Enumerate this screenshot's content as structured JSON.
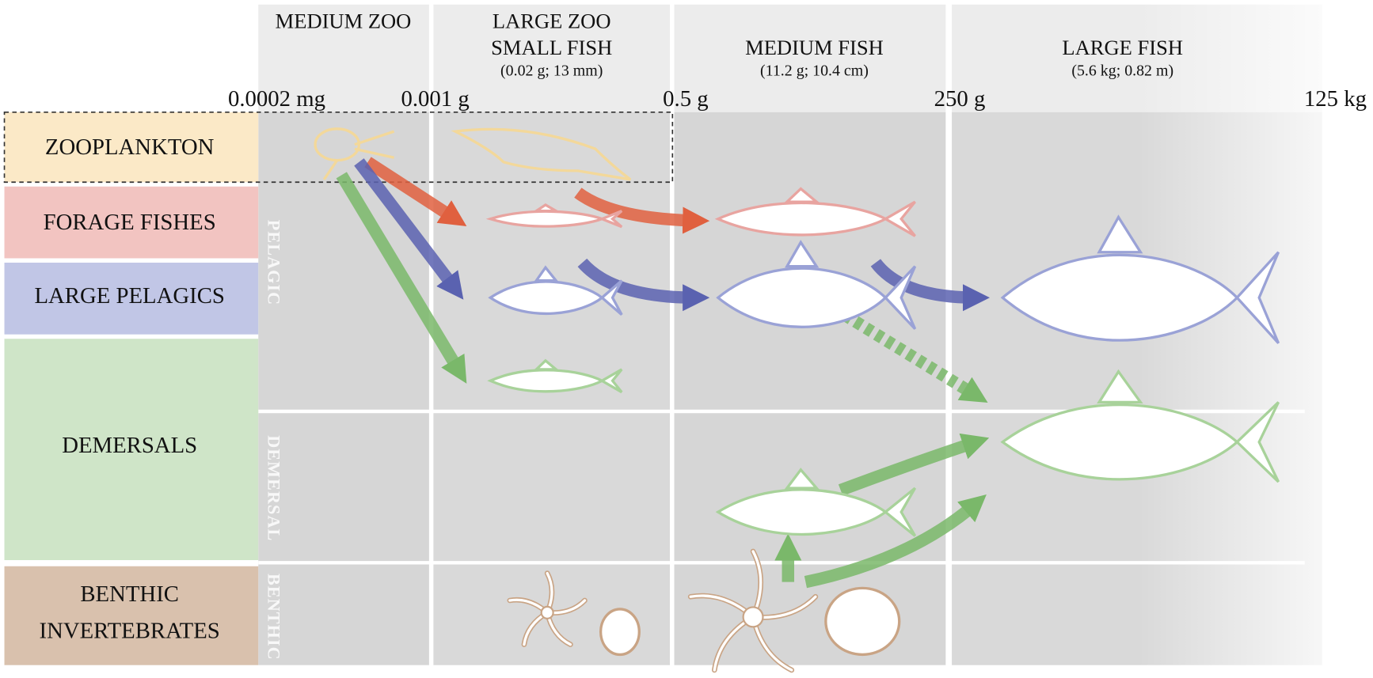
{
  "columns": [
    {
      "lines": [
        "MEDIUM ZOO"
      ]
    },
    {
      "lines": [
        "LARGE ZOO",
        "SMALL FISH"
      ],
      "note": "(0.02 g; 13 mm)"
    },
    {
      "lines": [
        "MEDIUM FISH"
      ],
      "note": "(11.2 g; 10.4 cm)"
    },
    {
      "lines": [
        "LARGE FISH"
      ],
      "note": "(5.6 kg; 0.82 m)"
    }
  ],
  "size_labels": [
    "0.0002 mg",
    "0.001 g",
    "0.5 g",
    "250 g",
    "125 kg"
  ],
  "groups": [
    {
      "lines": [
        "ZOOPLANKTON"
      ]
    },
    {
      "lines": [
        "FORAGE FISHES"
      ]
    },
    {
      "lines": [
        "LARGE PELAGICS"
      ]
    },
    {
      "lines": [
        "DEMERSALS"
      ]
    },
    {
      "lines": [
        "BENTHIC",
        "INVERTEBRATES"
      ]
    }
  ],
  "habitats": [
    "PELAGIC",
    "DEMERSAL",
    "BENTHIC"
  ]
}
